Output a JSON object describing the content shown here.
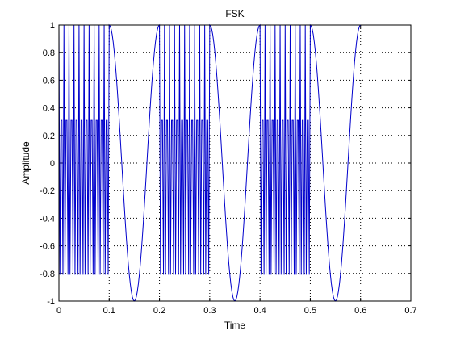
{
  "chart_data": {
    "type": "line",
    "title": "FSK",
    "xlabel": "Time",
    "ylabel": "Amplitude",
    "xlim": [
      0,
      0.7
    ],
    "ylim": [
      -1,
      1
    ],
    "xticks": [
      0,
      0.1,
      0.2,
      0.3,
      0.4,
      0.5,
      0.6,
      0.7
    ],
    "xtick_labels": [
      "0",
      "0.1",
      "0.2",
      "0.3",
      "0.4",
      "0.5",
      "0.6",
      "0.7"
    ],
    "yticks": [
      1,
      0.8,
      0.6,
      0.4,
      0.2,
      0,
      -0.2,
      -0.4,
      -0.6,
      -0.8,
      -1
    ],
    "ytick_labels": [
      "1",
      "0.8",
      "0.6",
      "0.4",
      "0.2",
      "0",
      "-0.2",
      "-0.4",
      "-0.6",
      "-0.8",
      "-1"
    ],
    "grid": true,
    "grid_style": "dotted",
    "line_color": "#0000cc",
    "series": [
      {
        "x_start": 0,
        "x_end": 0.6,
        "x_step": 0.002,
        "segments": [
          {
            "x_from": 0.0,
            "x_to": 0.1,
            "frequency": 200
          },
          {
            "x_from": 0.1,
            "x_to": 0.2,
            "frequency": 10
          },
          {
            "x_from": 0.2,
            "x_to": 0.3,
            "frequency": 200
          },
          {
            "x_from": 0.3,
            "x_to": 0.4,
            "frequency": 10
          },
          {
            "x_from": 0.4,
            "x_to": 0.5,
            "frequency": 200
          },
          {
            "x_from": 0.5,
            "x_to": 0.6,
            "frequency": 10
          }
        ],
        "formula": "cos(2*pi*frequency*x)"
      }
    ]
  }
}
